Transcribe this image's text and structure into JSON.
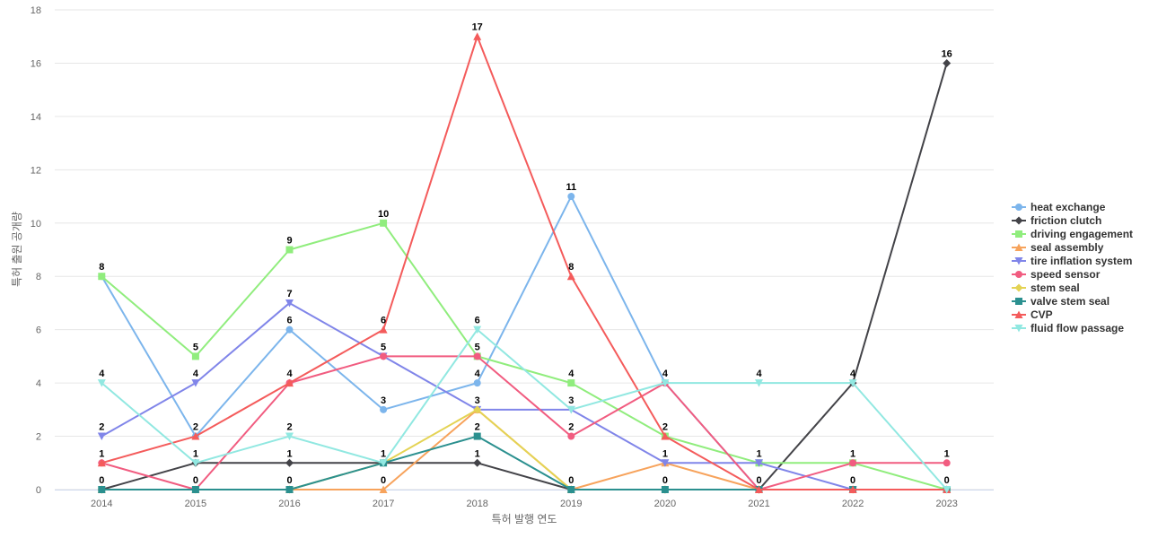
{
  "chart_data": {
    "type": "line",
    "xlabel": "특허 발행 연도",
    "ylabel": "특허 출원 공개량",
    "x": [
      "2014",
      "2015",
      "2016",
      "2017",
      "2018",
      "2019",
      "2020",
      "2021",
      "2022",
      "2023"
    ],
    "ylim": [
      0,
      18
    ],
    "yticks": [
      0,
      2,
      4,
      6,
      8,
      10,
      12,
      14,
      16,
      18
    ],
    "grid": true,
    "legend_position": "right",
    "series": [
      {
        "name": "heat exchange",
        "color": "#7cb5ec",
        "marker": "circle",
        "values": [
          8,
          2,
          6,
          3,
          4,
          11,
          4,
          0,
          0,
          0
        ]
      },
      {
        "name": "friction clutch",
        "color": "#434348",
        "marker": "diamond",
        "values": [
          0,
          1,
          1,
          1,
          1,
          0,
          0,
          0,
          4,
          16
        ]
      },
      {
        "name": "driving engagement",
        "color": "#90ed7d",
        "marker": "square",
        "values": [
          8,
          5,
          9,
          10,
          5,
          4,
          2,
          1,
          1,
          0
        ]
      },
      {
        "name": "seal assembly",
        "color": "#f7a35c",
        "marker": "triangle",
        "values": [
          0,
          0,
          0,
          0,
          3,
          0,
          1,
          0,
          0,
          0
        ]
      },
      {
        "name": "tire inflation system",
        "color": "#8085e9",
        "marker": "triangle-down",
        "values": [
          2,
          4,
          7,
          5,
          3,
          3,
          1,
          1,
          0,
          0
        ]
      },
      {
        "name": "speed sensor",
        "color": "#f15c80",
        "marker": "circle",
        "values": [
          1,
          0,
          4,
          5,
          5,
          2,
          4,
          0,
          1,
          1
        ]
      },
      {
        "name": "stem seal",
        "color": "#e4d354",
        "marker": "diamond",
        "values": [
          0,
          0,
          0,
          1,
          3,
          0,
          0,
          0,
          0,
          0
        ]
      },
      {
        "name": "valve stem seal",
        "color": "#2b908f",
        "marker": "square",
        "values": [
          0,
          0,
          0,
          1,
          2,
          0,
          0,
          0,
          0,
          0
        ]
      },
      {
        "name": "CVP",
        "color": "#f45b5b",
        "marker": "triangle",
        "values": [
          1,
          2,
          4,
          6,
          17,
          8,
          2,
          0,
          0,
          0
        ]
      },
      {
        "name": "fluid flow passage",
        "color": "#91e8e1",
        "marker": "triangle-down",
        "values": [
          4,
          1,
          2,
          1,
          6,
          3,
          4,
          4,
          4,
          0
        ]
      }
    ],
    "data_labels": [
      {
        "x": "2014",
        "y": 8,
        "text": "8"
      },
      {
        "x": "2014",
        "y": 4,
        "text": "4"
      },
      {
        "x": "2014",
        "y": 2,
        "text": "2"
      },
      {
        "x": "2014",
        "y": 1,
        "text": "1"
      },
      {
        "x": "2014",
        "y": 0,
        "text": "0"
      },
      {
        "x": "2015",
        "y": 5,
        "text": "5"
      },
      {
        "x": "2015",
        "y": 4,
        "text": "4"
      },
      {
        "x": "2015",
        "y": 2,
        "text": "2"
      },
      {
        "x": "2015",
        "y": 1,
        "text": "1"
      },
      {
        "x": "2015",
        "y": 0,
        "text": "0"
      },
      {
        "x": "2016",
        "y": 9,
        "text": "9"
      },
      {
        "x": "2016",
        "y": 7,
        "text": "7"
      },
      {
        "x": "2016",
        "y": 6,
        "text": "6"
      },
      {
        "x": "2016",
        "y": 4,
        "text": "4"
      },
      {
        "x": "2016",
        "y": 2,
        "text": "2"
      },
      {
        "x": "2016",
        "y": 1,
        "text": "1"
      },
      {
        "x": "2016",
        "y": 0,
        "text": "0"
      },
      {
        "x": "2017",
        "y": 10,
        "text": "10"
      },
      {
        "x": "2017",
        "y": 6,
        "text": "6"
      },
      {
        "x": "2017",
        "y": 5,
        "text": "5"
      },
      {
        "x": "2017",
        "y": 3,
        "text": "3"
      },
      {
        "x": "2017",
        "y": 1,
        "text": "1"
      },
      {
        "x": "2017",
        "y": 0,
        "text": "0"
      },
      {
        "x": "2018",
        "y": 17,
        "text": "17"
      },
      {
        "x": "2018",
        "y": 6,
        "text": "6"
      },
      {
        "x": "2018",
        "y": 5,
        "text": "5"
      },
      {
        "x": "2018",
        "y": 4,
        "text": "4"
      },
      {
        "x": "2018",
        "y": 3,
        "text": "3"
      },
      {
        "x": "2018",
        "y": 2,
        "text": "2"
      },
      {
        "x": "2018",
        "y": 1,
        "text": "1"
      },
      {
        "x": "2019",
        "y": 11,
        "text": "11"
      },
      {
        "x": "2019",
        "y": 8,
        "text": "8"
      },
      {
        "x": "2019",
        "y": 4,
        "text": "4"
      },
      {
        "x": "2019",
        "y": 3,
        "text": "3"
      },
      {
        "x": "2019",
        "y": 2,
        "text": "2"
      },
      {
        "x": "2019",
        "y": 0,
        "text": "0"
      },
      {
        "x": "2020",
        "y": 4,
        "text": "4"
      },
      {
        "x": "2020",
        "y": 2,
        "text": "2"
      },
      {
        "x": "2020",
        "y": 1,
        "text": "1"
      },
      {
        "x": "2020",
        "y": 0,
        "text": "0"
      },
      {
        "x": "2021",
        "y": 4,
        "text": "4"
      },
      {
        "x": "2021",
        "y": 1,
        "text": "1"
      },
      {
        "x": "2021",
        "y": 0,
        "text": "0"
      },
      {
        "x": "2022",
        "y": 4,
        "text": "4"
      },
      {
        "x": "2022",
        "y": 1,
        "text": "1"
      },
      {
        "x": "2022",
        "y": 0,
        "text": "0"
      },
      {
        "x": "2023",
        "y": 16,
        "text": "16"
      },
      {
        "x": "2023",
        "y": 1,
        "text": "1"
      },
      {
        "x": "2023",
        "y": 0,
        "text": "0"
      }
    ]
  }
}
